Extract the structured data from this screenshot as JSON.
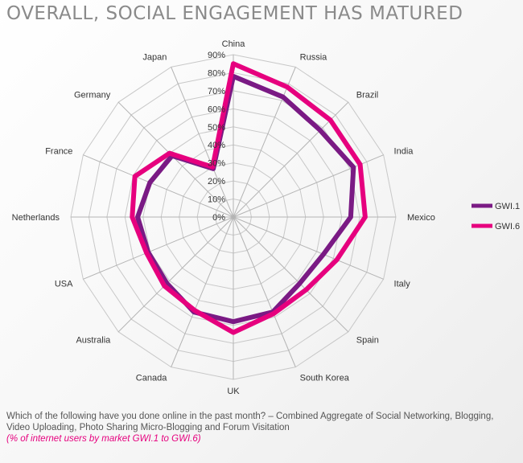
{
  "title": "OVERALL, SOCIAL ENGAGEMENT HAS MATURED",
  "footer": {
    "question": "Which of the following have you done online in the past month? – Combined Aggregate of Social Networking, Blogging, Video Uploading, Photo Sharing Micro-Blogging and Forum Visitation",
    "note": "(% of internet users by market GWI.1 to GWI.6)"
  },
  "chart_data": {
    "type": "radar",
    "categories": [
      "China",
      "Russia",
      "Brazil",
      "India",
      "Mexico",
      "Italy",
      "Spain",
      "South Korea",
      "UK",
      "Canada",
      "Australia",
      "USA",
      "Netherlands",
      "France",
      "Germany",
      "Japan"
    ],
    "ticks": [
      "0%",
      "10%",
      "20%",
      "30%",
      "40%",
      "50%",
      "60%",
      "70%",
      "80%",
      "90%"
    ],
    "rlim": [
      0,
      90
    ],
    "legend_position": "right",
    "series": [
      {
        "name": "GWI.1",
        "color": "#7a1a84",
        "values": [
          78,
          72,
          68,
          72,
          65,
          54,
          52,
          57,
          58,
          57,
          52,
          51,
          53,
          50,
          48,
          29
        ]
      },
      {
        "name": "GWI.6",
        "color": "#e6007e",
        "values": [
          85,
          78,
          76,
          76,
          73,
          62,
          57,
          58,
          64,
          56,
          54,
          52,
          56,
          59,
          50,
          30
        ]
      }
    ]
  }
}
